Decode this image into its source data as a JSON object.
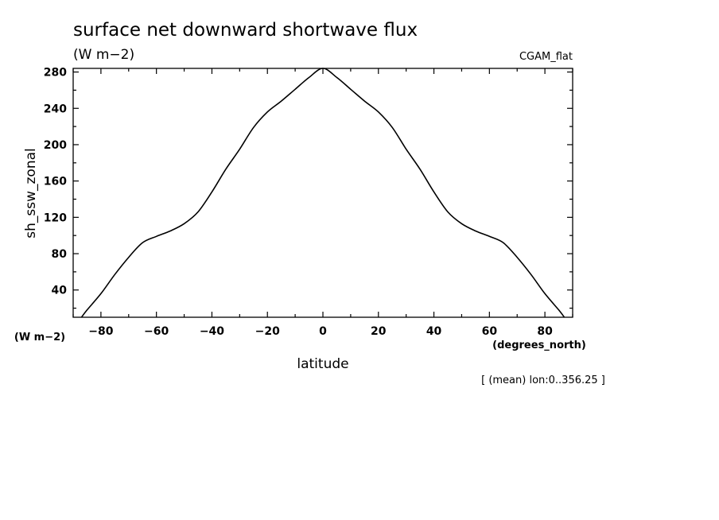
{
  "chart_data": {
    "type": "line",
    "title": "surface net downward shortwave flux",
    "subtitle": "(W m−2)",
    "dataset_label": "CGAM_flat",
    "xlabel": "latitude",
    "x_units": "(degrees_north)",
    "ylabel": "sh_ssw_zonal",
    "y_units": "(W m−2)",
    "footnote": "[ (mean) lon:0..356.25 ]",
    "xlim": [
      -90,
      90
    ],
    "ylim": [
      10,
      284
    ],
    "xticks": [
      -80,
      -60,
      -40,
      -20,
      0,
      20,
      40,
      60,
      80
    ],
    "xtick_labels": [
      "−80",
      "−60",
      "−40",
      "−20",
      "0",
      "20",
      "40",
      "60",
      "80"
    ],
    "yticks": [
      40,
      80,
      120,
      160,
      200,
      240,
      280
    ],
    "ytick_labels": [
      "40",
      "80",
      "120",
      "160",
      "200",
      "240",
      "280"
    ],
    "grid": false,
    "series": [
      {
        "x": [
          -87,
          -85,
          -80,
          -75,
          -70,
          -65,
          -60,
          -55,
          -50,
          -45,
          -40,
          -35,
          -30,
          -25,
          -20,
          -15,
          -10,
          -5,
          0,
          5,
          10,
          15,
          20,
          25,
          30,
          35,
          40,
          45,
          50,
          55,
          60,
          65,
          70,
          75,
          80,
          85,
          87
        ],
        "y": [
          10,
          18,
          36,
          57,
          76,
          92,
          99,
          105,
          113,
          126,
          148,
          173,
          195,
          219,
          236,
          248,
          261,
          274,
          284,
          274,
          261,
          248,
          236,
          219,
          195,
          173,
          148,
          126,
          113,
          105,
          99,
          92,
          76,
          57,
          36,
          18,
          10
        ]
      }
    ]
  }
}
